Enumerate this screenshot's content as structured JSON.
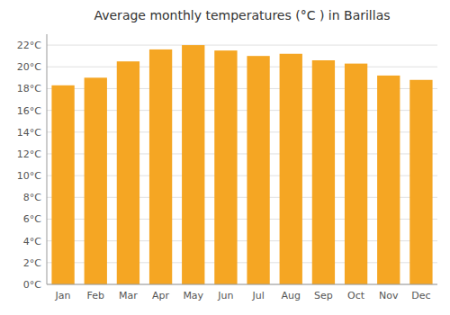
{
  "chart_data": {
    "type": "bar",
    "title": "Average monthly temperatures (°C ) in Barillas",
    "categories": [
      "Jan",
      "Feb",
      "Mar",
      "Apr",
      "May",
      "Jun",
      "Jul",
      "Aug",
      "Sep",
      "Oct",
      "Nov",
      "Dec"
    ],
    "values": [
      18.3,
      19.0,
      20.5,
      21.6,
      22.0,
      21.5,
      21.0,
      21.2,
      20.6,
      20.3,
      19.2,
      18.8
    ],
    "color": "#F5A623",
    "ylim": [
      0,
      23
    ],
    "yticks": [
      {
        "value": 0,
        "label": "0°C"
      },
      {
        "value": 2,
        "label": "2°C"
      },
      {
        "value": 4,
        "label": "4°C"
      },
      {
        "value": 6,
        "label": "6°C"
      },
      {
        "value": 8,
        "label": "8°C"
      },
      {
        "value": 10,
        "label": "10°C"
      },
      {
        "value": 12,
        "label": "12°C"
      },
      {
        "value": 14,
        "label": "14°C"
      },
      {
        "value": 16,
        "label": "16°C"
      },
      {
        "value": 18,
        "label": "18°C"
      },
      {
        "value": 20,
        "label": "20°C"
      },
      {
        "value": 22,
        "label": "22°C"
      }
    ],
    "grid": true
  }
}
